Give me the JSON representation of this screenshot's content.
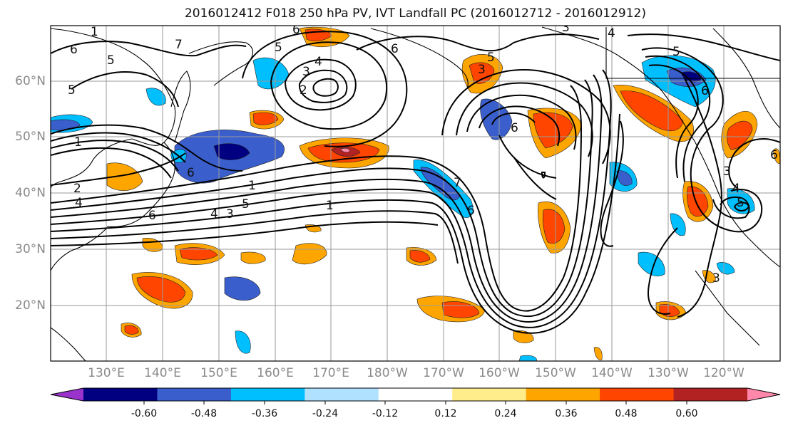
{
  "title": "2016012412 F018 250 hPa PV, IVT Landfall PC (2016012712 - 2016012912)",
  "lat_labels": [
    "60°N",
    "50°N",
    "40°N",
    "30°N",
    "20°N"
  ],
  "lon_labels": [
    "130°E",
    "140°E",
    "150°E",
    "160°E",
    "170°E",
    "180°W",
    "170°W",
    "160°W",
    "150°W",
    "140°W",
    "130°W",
    "120°W"
  ],
  "colorbar": {
    "ticks": [
      "-0.60",
      "-0.48",
      "-0.36",
      "-0.24",
      "-0.12",
      "0.12",
      "0.24",
      "0.36",
      "0.48",
      "0.60"
    ],
    "colors": [
      "#9933cc",
      "#000080",
      "#3a5fcd",
      "#00bfff",
      "#b0e2ff",
      "#ffffff",
      "#ffec8b",
      "#ffa500",
      "#ff4500",
      "#b22222",
      "#ff88aa"
    ]
  },
  "contour_labels": [
    "1",
    "2",
    "3",
    "4",
    "5",
    "6",
    "7"
  ]
}
